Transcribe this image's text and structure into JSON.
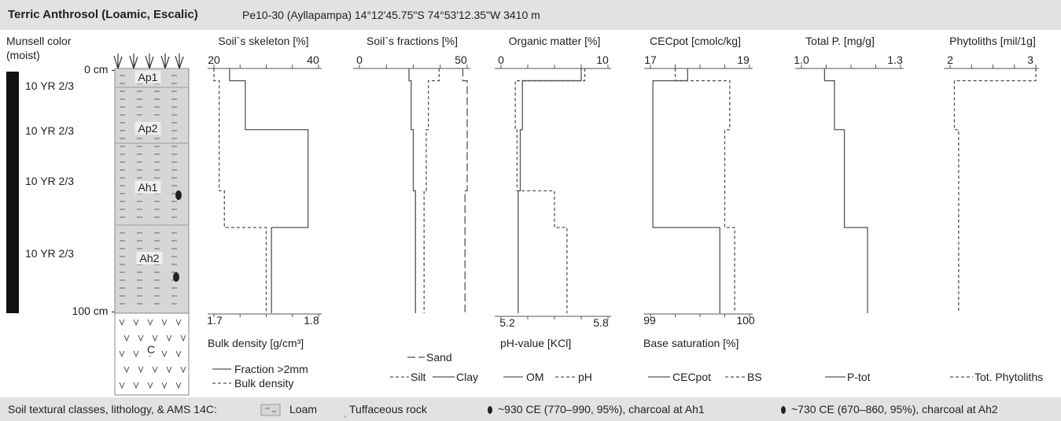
{
  "header": {
    "title": "Terric Anthrosol (Loamic, Escalic)",
    "subtitle": "Pe10-30 (Ayllapampa) 14°12'45.75\"S 74°53'12.35\"W 3410 m"
  },
  "profile": {
    "munsell_label_line1": "Munsell color",
    "munsell_label_line2": "(moist)",
    "depth_top": "0 cm -",
    "depth_bottom": "100 cm -",
    "colors": [
      "10 YR 2/3",
      "10 YR 2/3",
      "10 YR 2/3",
      "10 YR 2/3"
    ],
    "horizons": [
      "Ap1",
      "Ap2",
      "Ah1",
      "Ah2",
      "C"
    ]
  },
  "panels": {
    "skeleton": {
      "title": "Soil`s skeleton [%]",
      "top_min": "20",
      "top_max": "40",
      "bottom_min": "1.7",
      "bottom_max": "1.8",
      "bottom_title": "Bulk density [g/cm³]",
      "legend1": "Fraction >2mm",
      "legend2": "Bulk density"
    },
    "fractions": {
      "title": "Soil`s fractions [%]",
      "top_min": "0",
      "top_max": "50",
      "legend_sand": "Sand",
      "legend_silt": "Silt",
      "legend_clay": "Clay"
    },
    "organic": {
      "title": "Organic matter [%]",
      "top_min": "0",
      "top_max": "10",
      "bottom_min": "5.2",
      "bottom_max": "5.8",
      "bottom_title": "pH-value [KCl]",
      "legend1": "OM",
      "legend2": "pH"
    },
    "cec": {
      "title": "CECpot [cmolc/kg]",
      "top_min": "17",
      "top_max": "19",
      "bottom_min": "99",
      "bottom_max": "100",
      "bottom_title": "Base saturation [%]",
      "legend1": "CECpot",
      "legend2": "BS"
    },
    "phosphorus": {
      "title": "Total P. [mg/g]",
      "top_min": "1.0",
      "top_max": "1.3",
      "legend1": "P-tot"
    },
    "phytoliths": {
      "title": "Phytoliths [mil/1g]",
      "top_min": "2",
      "top_max": "3",
      "legend1": "Tot. Phytoliths"
    }
  },
  "footer": {
    "lead": "Soil textural classes, lithology, & AMS 14C:",
    "loam": "Loam",
    "tuff": "Tuffaceous rock",
    "date1": "~930 CE (770–990, 95%), charcoal at Ah1",
    "date2": "~730 CE (670–860, 95%), charcoal at Ah2"
  },
  "chart_data": {
    "type": "line",
    "depth_unit": "cm",
    "depths": [
      0,
      5,
      25,
      50,
      65,
      100
    ],
    "series": [
      {
        "name": "Fraction >2mm",
        "axis": "Soil`s skeleton [%]",
        "values": [
          23,
          26,
          38,
          38,
          31,
          31
        ],
        "style": "solid"
      },
      {
        "name": "Bulk density",
        "axis": "Bulk density [g/cm³]",
        "values": [
          1.7,
          1.705,
          1.705,
          1.71,
          1.75,
          1.75
        ],
        "style": "dashed"
      },
      {
        "name": "Sand",
        "axis": "Soil`s fractions [%]",
        "values": [
          48,
          50,
          50,
          49,
          49,
          49
        ],
        "style": "long-dash"
      },
      {
        "name": "Silt",
        "axis": "Soil`s fractions [%]",
        "values": [
          37,
          32,
          31,
          30,
          30,
          30
        ],
        "style": "dashed"
      },
      {
        "name": "Clay",
        "axis": "Soil`s fractions [%]",
        "values": [
          23,
          24,
          25,
          26,
          26,
          26
        ],
        "style": "solid"
      },
      {
        "name": "OM",
        "axis": "Organic matter [%]",
        "values": [
          7.5,
          2.0,
          1.8,
          1.6,
          1.6,
          1.6
        ],
        "style": "solid"
      },
      {
        "name": "pH",
        "axis": "pH-value [KCl]",
        "values": [
          5.67,
          5.28,
          5.29,
          5.5,
          5.57,
          5.57
        ],
        "style": "dashed"
      },
      {
        "name": "CECpot",
        "axis": "CECpot [cmolc/kg]",
        "values": [
          17.75,
          17.05,
          17.05,
          17.05,
          18.4,
          18.4
        ],
        "style": "solid"
      },
      {
        "name": "BS",
        "axis": "Base saturation [%]",
        "values": [
          99.25,
          99.8,
          99.75,
          99.75,
          99.85,
          99.85
        ],
        "style": "dashed"
      },
      {
        "name": "P-tot",
        "axis": "Total P. [mg/g]",
        "values": [
          1.07,
          1.1,
          1.13,
          1.13,
          1.2,
          1.2
        ],
        "style": "solid"
      },
      {
        "name": "Tot. Phytoliths",
        "axis": "Phytoliths [mil/1g]",
        "values": [
          3.0,
          2.05,
          2.1,
          2.1,
          2.1,
          2.1
        ],
        "style": "dashed"
      }
    ]
  }
}
